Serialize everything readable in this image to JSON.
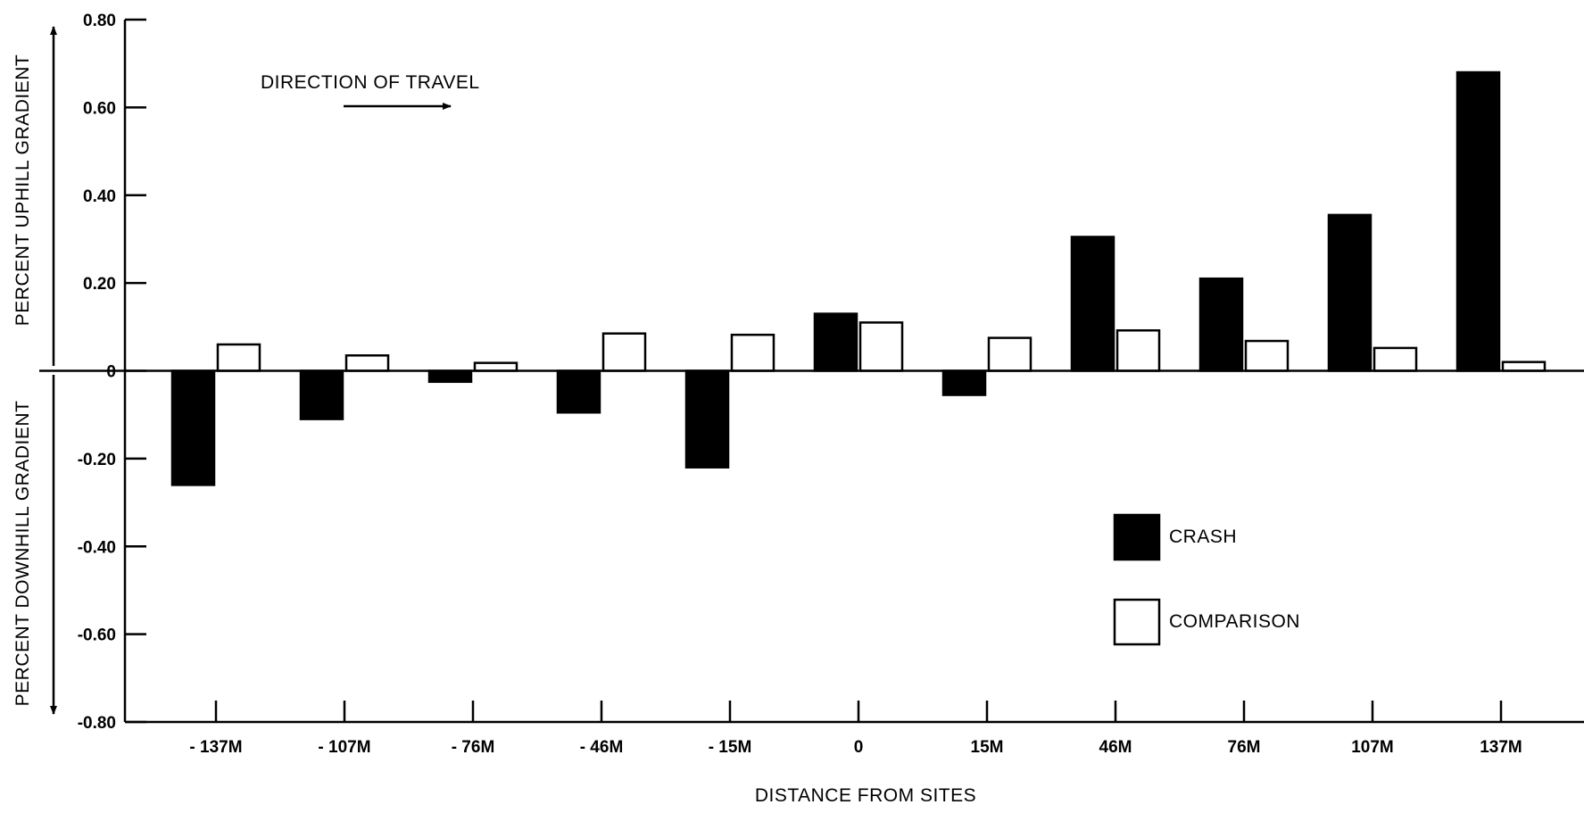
{
  "chart_data": {
    "type": "bar",
    "title": "",
    "xlabel": "DISTANCE FROM SITES",
    "ylabel_top": "PERCENT UPHILL GRADIENT",
    "ylabel_bottom": "PERCENT DOWNHILL GRADIENT",
    "ylim": [
      -0.8,
      0.8
    ],
    "yticks": [
      {
        "value": 0.8,
        "label": "0.80"
      },
      {
        "value": 0.6,
        "label": "0.60"
      },
      {
        "value": 0.4,
        "label": "0.40"
      },
      {
        "value": 0.2,
        "label": "0.20"
      },
      {
        "value": 0,
        "label": "0"
      },
      {
        "value": -0.2,
        "label": "-0.20"
      },
      {
        "value": -0.4,
        "label": "-0.40"
      },
      {
        "value": -0.6,
        "label": "-0.60"
      },
      {
        "value": -0.8,
        "label": "-0.80"
      }
    ],
    "categories": [
      "- 137M",
      "- 107M",
      "- 76M",
      "- 46M",
      "- 15M",
      "0",
      "15M",
      "46M",
      "76M",
      "107M",
      "137M"
    ],
    "series": [
      {
        "name": "CRASH",
        "fill": "#000000",
        "values": [
          -0.26,
          -0.11,
          -0.025,
          -0.095,
          -0.22,
          0.13,
          -0.055,
          0.305,
          0.21,
          0.355,
          0.68
        ]
      },
      {
        "name": "COMPARISON",
        "fill": "#ffffff",
        "values": [
          0.06,
          0.035,
          0.018,
          0.085,
          0.082,
          0.11,
          0.075,
          0.092,
          0.068,
          0.052,
          0.02
        ]
      }
    ],
    "annotation": "DIRECTION OF TRAVEL",
    "legend_position": "lower-right",
    "grid": false
  }
}
